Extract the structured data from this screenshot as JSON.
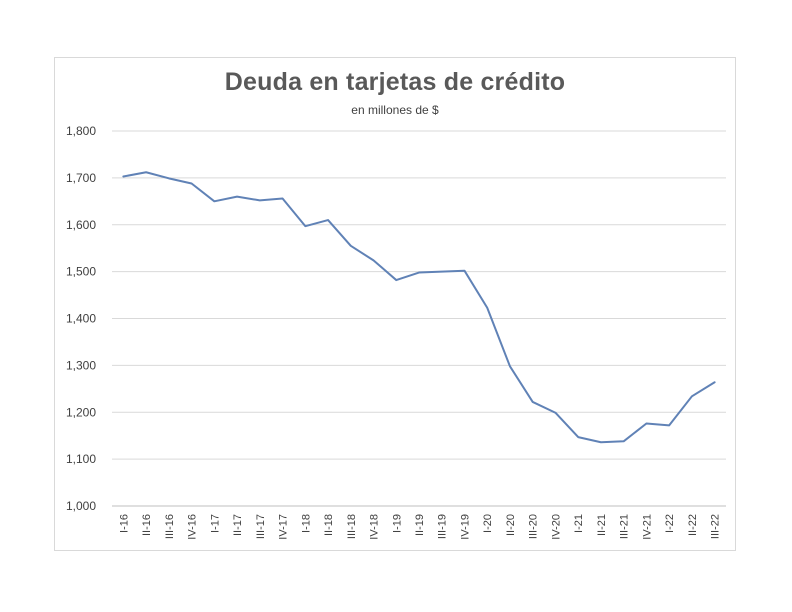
{
  "chart_data": {
    "type": "line",
    "title": "Deuda en tarjetas de crédito",
    "subtitle": "en millones  de $",
    "xlabel": "",
    "ylabel": "",
    "ylim": [
      1000,
      1800
    ],
    "yticks": [
      "1,000",
      "1,100",
      "1,200",
      "1,300",
      "1,400",
      "1,500",
      "1,600",
      "1,700",
      "1,800"
    ],
    "grid": true,
    "legend": "none",
    "categories": [
      "I-16",
      "II-16",
      "III-16",
      "IV-16",
      "I-17",
      "II-17",
      "III-17",
      "IV-17",
      "I-18",
      "II-18",
      "III-18",
      "IV-18",
      "I-19",
      "II-19",
      "III-19",
      "IV-19",
      "I-20",
      "II-20",
      "III-20",
      "IV-20",
      "I-21",
      "II-21",
      "III-21",
      "IV-21",
      "I-22",
      "II-22",
      "III-22"
    ],
    "series": [
      {
        "color": "#6082b6",
        "values": [
          1703,
          1712,
          1699,
          1688,
          1650,
          1660,
          1652,
          1656,
          1597,
          1610,
          1555,
          1524,
          1482,
          1498,
          1500,
          1502,
          1423,
          1298,
          1222,
          1199,
          1147,
          1136,
          1138,
          1176,
          1172,
          1234,
          1264
        ]
      }
    ]
  }
}
